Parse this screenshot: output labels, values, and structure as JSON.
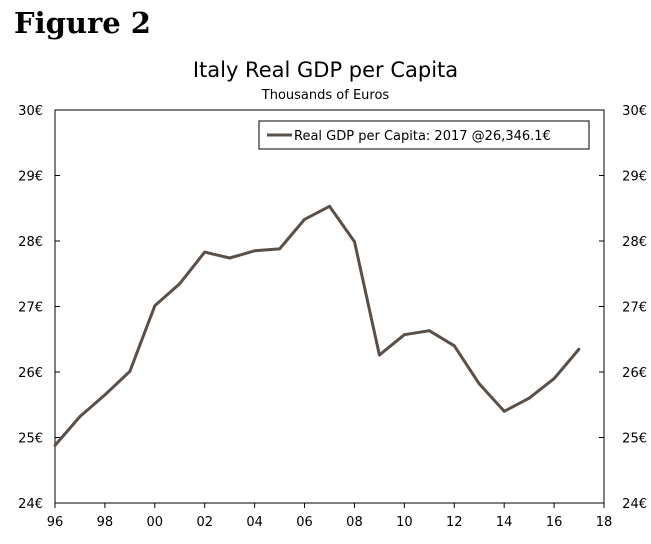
{
  "figure_label": "Figure 2",
  "chart_data": {
    "type": "line",
    "title": "Italy Real GDP per Capita",
    "subtitle": "Thousands of Euros",
    "x_tick_labels": [
      "96",
      "98",
      "00",
      "02",
      "04",
      "06",
      "08",
      "10",
      "12",
      "14",
      "16",
      "18"
    ],
    "x_ticks": [
      1996,
      1998,
      2000,
      2002,
      2004,
      2006,
      2008,
      2010,
      2012,
      2014,
      2016,
      2018
    ],
    "xlim": [
      1996,
      2018
    ],
    "ylim": [
      24,
      30
    ],
    "y_ticks": [
      24,
      25,
      26,
      27,
      28,
      29,
      30
    ],
    "y_tick_labels": [
      "24€",
      "25€",
      "26€",
      "27€",
      "28€",
      "29€",
      "30€"
    ],
    "grid": false,
    "legend_position": "top-right",
    "line_color": "#5a5049",
    "series": [
      {
        "name": "Real GDP per Capita: 2017 @26,346.1€",
        "x": [
          1996,
          1997,
          1998,
          1999,
          2000,
          2001,
          2002,
          2003,
          2004,
          2005,
          2006,
          2007,
          2008,
          2009,
          2010,
          2011,
          2012,
          2013,
          2014,
          2015,
          2016,
          2017
        ],
        "values": [
          24.88,
          25.32,
          25.65,
          26.01,
          27.01,
          27.35,
          27.83,
          27.74,
          27.85,
          27.88,
          28.33,
          28.53,
          27.99,
          26.26,
          26.57,
          26.63,
          26.4,
          25.82,
          25.4,
          25.6,
          25.9,
          26.35
        ]
      }
    ]
  }
}
